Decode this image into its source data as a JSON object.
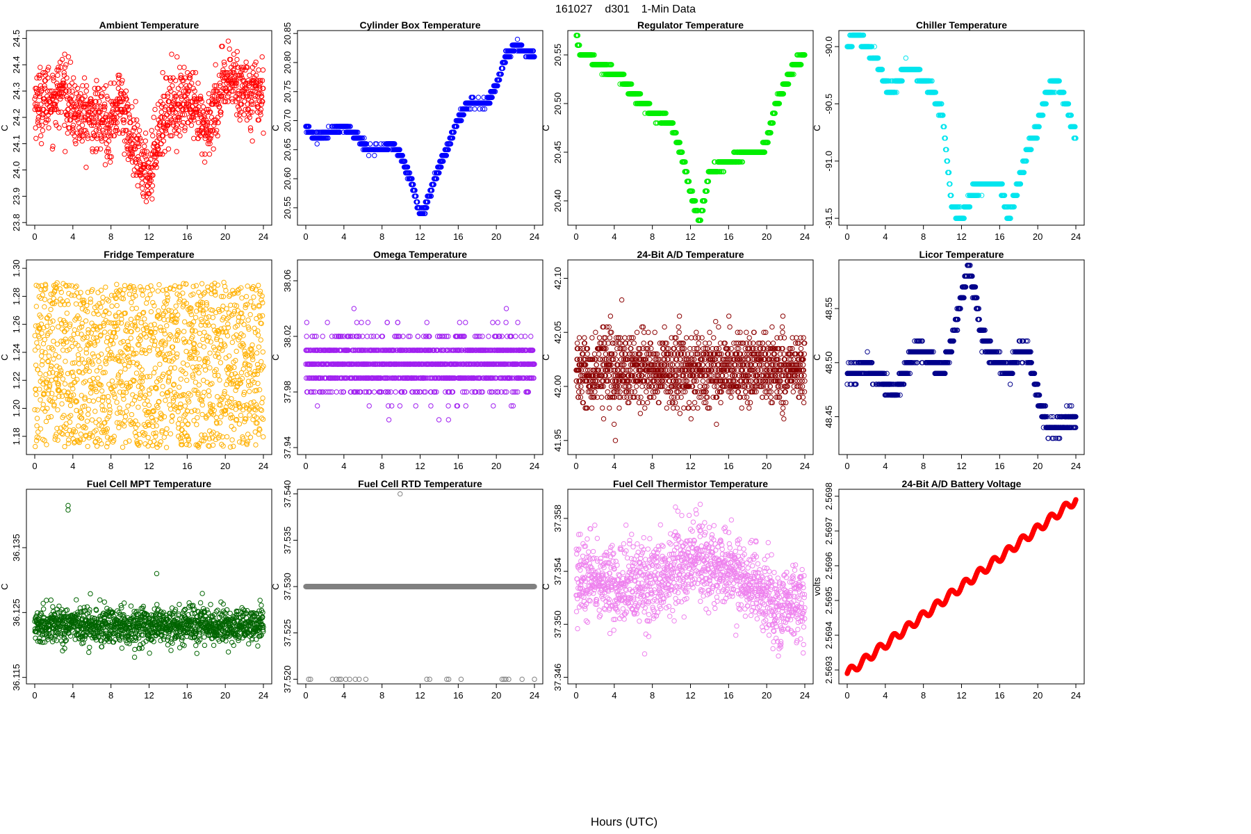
{
  "page": {
    "title_date": "161027",
    "title_site": "d301",
    "title_desc": "1-Min Data",
    "xlabel": "Hours (UTC)"
  },
  "chart_data": [
    {
      "type": "scatter",
      "title": "Ambient Temperature",
      "ylabel": "C",
      "color": "#ff0000",
      "xlim": [
        0,
        24
      ],
      "xticks": [
        0,
        4,
        8,
        12,
        16,
        20,
        24
      ],
      "ylim": [
        23.79,
        24.53
      ],
      "yticks": [
        23.8,
        23.9,
        24.0,
        24.1,
        24.2,
        24.3,
        24.4,
        24.5
      ],
      "ytick_labels": [
        "23.8",
        "23.9",
        "24.0",
        "24.1",
        "24.2",
        "24.3",
        "24.4",
        "24.5"
      ],
      "quant": 0.01,
      "noise": 0.065,
      "n": 1100,
      "step": false,
      "shape": [
        [
          0,
          24.26
        ],
        [
          2,
          24.27
        ],
        [
          3,
          24.32
        ],
        [
          4,
          24.22
        ],
        [
          6,
          24.2
        ],
        [
          8,
          24.18
        ],
        [
          9,
          24.27
        ],
        [
          10,
          24.12
        ],
        [
          11,
          24.03
        ],
        [
          12,
          23.98
        ],
        [
          13,
          24.15
        ],
        [
          14,
          24.24
        ],
        [
          16,
          24.27
        ],
        [
          17,
          24.2
        ],
        [
          18,
          24.15
        ],
        [
          19,
          24.25
        ],
        [
          20,
          24.32
        ],
        [
          21,
          24.35
        ],
        [
          22,
          24.3
        ],
        [
          24,
          24.3
        ]
      ]
    },
    {
      "type": "scatter",
      "title": "Cylinder Box Temperature",
      "ylabel": "C",
      "color": "#0000ff",
      "xlim": [
        0,
        24
      ],
      "xticks": [
        0,
        4,
        8,
        12,
        16,
        20,
        24
      ],
      "ylim": [
        20.52,
        20.855
      ],
      "yticks": [
        20.55,
        20.6,
        20.65,
        20.7,
        20.75,
        20.8,
        20.85
      ],
      "ytick_labels": [
        "20.55",
        "20.60",
        "20.65",
        "20.70",
        "20.75",
        "20.80",
        "20.85"
      ],
      "quant": 0.01,
      "noise": 0.003,
      "n": 1440,
      "step": true,
      "shape": [
        [
          0,
          20.69
        ],
        [
          1,
          20.67
        ],
        [
          2.5,
          20.68
        ],
        [
          4,
          20.69
        ],
        [
          5.5,
          20.67
        ],
        [
          6.5,
          20.65
        ],
        [
          8,
          20.65
        ],
        [
          9,
          20.66
        ],
        [
          10,
          20.64
        ],
        [
          11,
          20.6
        ],
        [
          12,
          20.54
        ],
        [
          12.5,
          20.55
        ],
        [
          14,
          20.62
        ],
        [
          15,
          20.66
        ],
        [
          16,
          20.7
        ],
        [
          17,
          20.73
        ],
        [
          19,
          20.73
        ],
        [
          20,
          20.76
        ],
        [
          21,
          20.81
        ],
        [
          22,
          20.83
        ],
        [
          24,
          20.81
        ]
      ]
    },
    {
      "type": "scatter",
      "title": "Regulator Temperature",
      "ylabel": "C",
      "color": "#00ee00",
      "xlim": [
        0,
        24
      ],
      "xticks": [
        0,
        4,
        8,
        12,
        16,
        20,
        24
      ],
      "ylim": [
        20.375,
        20.575
      ],
      "yticks": [
        20.4,
        20.45,
        20.5,
        20.55
      ],
      "ytick_labels": [
        "20.40",
        "20.45",
        "20.50",
        "20.55"
      ],
      "quant": 0.01,
      "noise": 0.002,
      "n": 1440,
      "step": true,
      "shape": [
        [
          0,
          20.57
        ],
        [
          0.5,
          20.55
        ],
        [
          1.5,
          20.55
        ],
        [
          2,
          20.54
        ],
        [
          4.5,
          20.53
        ],
        [
          6,
          20.51
        ],
        [
          8,
          20.49
        ],
        [
          10,
          20.48
        ],
        [
          11,
          20.45
        ],
        [
          12,
          20.41
        ],
        [
          13,
          20.38
        ],
        [
          14,
          20.43
        ],
        [
          16,
          20.44
        ],
        [
          18,
          20.45
        ],
        [
          19.5,
          20.45
        ],
        [
          20,
          20.46
        ],
        [
          21,
          20.5
        ],
        [
          22,
          20.52
        ],
        [
          23,
          20.54
        ],
        [
          24,
          20.55
        ]
      ]
    },
    {
      "type": "scatter",
      "title": "Chiller Temperature",
      "ylabel": "C",
      "color": "#00e5ee",
      "xlim": [
        0,
        24
      ],
      "xticks": [
        0,
        4,
        8,
        12,
        16,
        20,
        24
      ],
      "ylim": [
        -91.56,
        -89.86
      ],
      "yticks": [
        -91.5,
        -91.0,
        -90.5,
        -90.0
      ],
      "ytick_labels": [
        "-91.5",
        "-91.0",
        "-90.5",
        "-90.0"
      ],
      "quant": 0.1,
      "noise": 0.02,
      "n": 1440,
      "step": true,
      "shape": [
        [
          0,
          -90.0
        ],
        [
          1,
          -89.9
        ],
        [
          2,
          -90.0
        ],
        [
          3,
          -90.1
        ],
        [
          3.5,
          -90.2
        ],
        [
          4.5,
          -90.4
        ],
        [
          5.5,
          -90.3
        ],
        [
          6,
          -90.2
        ],
        [
          7,
          -90.2
        ],
        [
          8,
          -90.3
        ],
        [
          9,
          -90.4
        ],
        [
          10,
          -90.6
        ],
        [
          11,
          -91.4
        ],
        [
          12,
          -91.5
        ],
        [
          13,
          -91.3
        ],
        [
          14,
          -91.2
        ],
        [
          16,
          -91.2
        ],
        [
          17,
          -91.5
        ],
        [
          18,
          -91.2
        ],
        [
          19,
          -90.9
        ],
        [
          20,
          -90.7
        ],
        [
          21,
          -90.4
        ],
        [
          22,
          -90.3
        ],
        [
          23,
          -90.5
        ],
        [
          24,
          -90.8
        ]
      ]
    },
    {
      "type": "scatter",
      "title": "Fridge Temperature",
      "ylabel": "C",
      "color": "#ffb000",
      "xlim": [
        0,
        24
      ],
      "xticks": [
        0,
        4,
        8,
        12,
        16,
        20,
        24
      ],
      "ylim": [
        1.167,
        1.306
      ],
      "yticks": [
        1.18,
        1.2,
        1.22,
        1.24,
        1.26,
        1.28,
        1.3
      ],
      "ytick_labels": [
        "1.18",
        "1.20",
        "1.22",
        "1.24",
        "1.26",
        "1.28",
        "1.30"
      ],
      "quant": 0.0,
      "uniform": [
        1.172,
        1.29
      ],
      "n": 1400,
      "step": false,
      "shape": [
        [
          0,
          1.23
        ],
        [
          24,
          1.23
        ]
      ]
    },
    {
      "type": "scatter",
      "title": "Omega Temperature",
      "ylabel": "C",
      "color": "#a020f0",
      "xlim": [
        0,
        24
      ],
      "xticks": [
        0,
        4,
        8,
        12,
        16,
        20,
        24
      ],
      "ylim": [
        37.935,
        38.075
      ],
      "yticks": [
        37.94,
        37.98,
        38.02,
        38.06
      ],
      "ytick_labels": [
        "37.94",
        "37.98",
        "38.02",
        "38.06"
      ],
      "quant": 0.01,
      "noise": 0.011,
      "n": 1440,
      "step": false,
      "shape": [
        [
          0,
          38.0
        ],
        [
          24,
          38.0
        ]
      ]
    },
    {
      "type": "scatter",
      "title": "24-Bit A/D Temperature",
      "ylabel": "C",
      "color": "#8b0000",
      "xlim": [
        0,
        24
      ],
      "xticks": [
        0,
        4,
        8,
        12,
        16,
        20,
        24
      ],
      "ylim": [
        41.937,
        42.117
      ],
      "yticks": [
        41.95,
        42.0,
        42.05,
        42.1
      ],
      "ytick_labels": [
        "41.95",
        "42.00",
        "42.05",
        "42.10"
      ],
      "quant": 0.005,
      "noise": 0.016,
      "n": 1440,
      "step": false,
      "shape": [
        [
          0,
          42.015
        ],
        [
          24,
          42.015
        ]
      ]
    },
    {
      "type": "scatter",
      "title": "Licor Temperature",
      "ylabel": "C",
      "color": "#00008b",
      "xlim": [
        0,
        24
      ],
      "xticks": [
        0,
        4,
        8,
        12,
        16,
        20,
        24
      ],
      "ylim": [
        48.415,
        48.595
      ],
      "yticks": [
        48.45,
        48.5,
        48.55
      ],
      "ytick_labels": [
        "48.45",
        "48.50",
        "48.55"
      ],
      "quant": 0.01,
      "noise": 0.004,
      "n": 1440,
      "step": true,
      "shape": [
        [
          0,
          48.49
        ],
        [
          1,
          48.49
        ],
        [
          2,
          48.5
        ],
        [
          3,
          48.49
        ],
        [
          4,
          48.48
        ],
        [
          5,
          48.47
        ],
        [
          6,
          48.49
        ],
        [
          7,
          48.51
        ],
        [
          8,
          48.51
        ],
        [
          10,
          48.49
        ],
        [
          11,
          48.52
        ],
        [
          12,
          48.56
        ],
        [
          12.7,
          48.59
        ],
        [
          13.5,
          48.56
        ],
        [
          14,
          48.53
        ],
        [
          15,
          48.51
        ],
        [
          16,
          48.5
        ],
        [
          17,
          48.49
        ],
        [
          18,
          48.51
        ],
        [
          19,
          48.51
        ],
        [
          20,
          48.47
        ],
        [
          21,
          48.44
        ],
        [
          22,
          48.44
        ],
        [
          24,
          48.45
        ]
      ]
    },
    {
      "type": "scatter",
      "title": "Fuel Cell MPT Temperature",
      "ylabel": "C",
      "color": "#006400",
      "xlim": [
        0,
        24
      ],
      "xticks": [
        0,
        4,
        8,
        12,
        16,
        20,
        24
      ],
      "ylim": [
        36.114,
        36.144
      ],
      "yticks": [
        36.115,
        36.125,
        36.135
      ],
      "ytick_labels": [
        "36.115",
        "36.125",
        "36.135"
      ],
      "quant": 0.0,
      "noise": 0.0014,
      "n": 1300,
      "step": false,
      "shape": [
        [
          0,
          36.123
        ],
        [
          24,
          36.123
        ]
      ],
      "outliers": [
        [
          3.5,
          36.1415
        ],
        [
          3.5,
          36.1408
        ],
        [
          12.8,
          36.131
        ]
      ]
    },
    {
      "type": "scatter",
      "title": "Fuel Cell RTD Temperature",
      "ylabel": "C",
      "color": "#808080",
      "xlim": [
        0,
        24
      ],
      "xticks": [
        0,
        4,
        8,
        12,
        16,
        20,
        24
      ],
      "ylim": [
        37.5195,
        37.5405
      ],
      "yticks": [
        37.52,
        37.525,
        37.53,
        37.535,
        37.54
      ],
      "ytick_labels": [
        "37.520",
        "37.525",
        "37.530",
        "37.535",
        "37.540"
      ],
      "quant": 0.0,
      "noise": 0.0,
      "n": 1440,
      "step": false,
      "shape": [
        [
          0,
          37.53
        ],
        [
          24,
          37.53
        ]
      ],
      "outliers": [
        [
          0.3,
          37.52
        ],
        [
          0.5,
          37.52
        ],
        [
          2.8,
          37.52
        ],
        [
          3.2,
          37.52
        ],
        [
          3.5,
          37.52
        ],
        [
          3.7,
          37.52
        ],
        [
          4.2,
          37.52
        ],
        [
          4.6,
          37.52
        ],
        [
          5.2,
          37.52
        ],
        [
          5.6,
          37.52
        ],
        [
          6.3,
          37.52
        ],
        [
          9.9,
          37.54
        ],
        [
          12.7,
          37.52
        ],
        [
          13.0,
          37.52
        ],
        [
          14.8,
          37.52
        ],
        [
          15.0,
          37.52
        ],
        [
          16.3,
          37.52
        ],
        [
          20.6,
          37.52
        ],
        [
          20.8,
          37.52
        ],
        [
          21.0,
          37.52
        ],
        [
          21.3,
          37.52
        ],
        [
          22.7,
          37.52
        ],
        [
          24.0,
          37.52
        ]
      ]
    },
    {
      "type": "scatter",
      "title": "Fuel Cell Thermistor Temperature",
      "ylabel": "C",
      "color": "#ee82ee",
      "xlim": [
        0,
        24
      ],
      "xticks": [
        0,
        4,
        8,
        12,
        16,
        20,
        24
      ],
      "ylim": [
        37.3455,
        37.3602
      ],
      "yticks": [
        37.346,
        37.35,
        37.354,
        37.358
      ],
      "ytick_labels": [
        "37.346",
        "37.350",
        "37.354",
        "37.358"
      ],
      "quant": 0.0,
      "noise": 0.0015,
      "n": 1300,
      "step": false,
      "shape": [
        [
          0,
          37.3535
        ],
        [
          4,
          37.353
        ],
        [
          8,
          37.353
        ],
        [
          12,
          37.355
        ],
        [
          16,
          37.354
        ],
        [
          19,
          37.353
        ],
        [
          21,
          37.351
        ],
        [
          24,
          37.352
        ]
      ]
    },
    {
      "type": "scatter",
      "title": "24-Bit A/D Battery Voltage",
      "ylabel": "volts",
      "color": "#ff0000",
      "xlim": [
        0,
        24
      ],
      "xticks": [
        0,
        4,
        8,
        12,
        16,
        20,
        24
      ],
      "ylim": [
        2.56926,
        2.56982
      ],
      "yticks": [
        2.5693,
        2.5694,
        2.5695,
        2.5696,
        2.5697,
        2.5698
      ],
      "ytick_labels": [
        "2.5693",
        "2.5694",
        "2.5695",
        "2.5696",
        "2.5697",
        "2.5698"
      ],
      "quant": 0.0,
      "noise": 0.0,
      "n": 1440,
      "step": false,
      "wavy": true,
      "shape": [
        [
          0,
          2.56929
        ],
        [
          24,
          2.56979
        ]
      ]
    }
  ]
}
